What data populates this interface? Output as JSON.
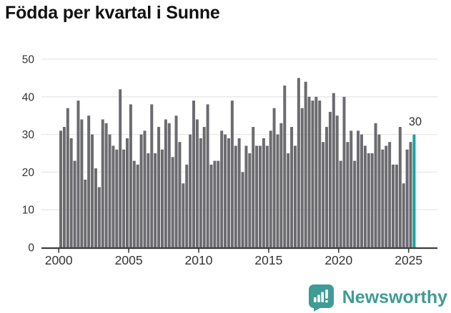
{
  "title": "Födda per kvartal i Sunne",
  "colors": {
    "bar": "#6B6B70",
    "highlight": "#16A39E",
    "grid": "#E7E7E7",
    "axis": "#3C3C3C",
    "tick_text": "#333333",
    "title_text": "#111111",
    "logo": "#3F9C95"
  },
  "y_axis": {
    "ticks": [
      0,
      10,
      20,
      30,
      40,
      50
    ],
    "max": 50
  },
  "x_axis": {
    "ticks": [
      "2000",
      "2005",
      "2010",
      "2015",
      "2020",
      "2025"
    ]
  },
  "highlight": {
    "label": "30"
  },
  "logo": {
    "text": "Newsworthy",
    "icon": "newsworthy-chart-bubble-icon"
  },
  "chart_data": {
    "type": "bar",
    "title": "Födda per kvartal i Sunne",
    "period": "quarterly",
    "x_start": "2000 Q1",
    "x_end": "2025 Q2",
    "ylim": [
      0,
      50
    ],
    "grid": true,
    "legend": false,
    "values": [
      31,
      32,
      37,
      29,
      23,
      39,
      34,
      18,
      35,
      30,
      21,
      16,
      34,
      33,
      30,
      27,
      26,
      42,
      26,
      29,
      38,
      23,
      22,
      30,
      31,
      25,
      38,
      25,
      32,
      26,
      34,
      33,
      24,
      35,
      28,
      17,
      22,
      30,
      39,
      34,
      29,
      32,
      38,
      22,
      23,
      23,
      31,
      30,
      29,
      39,
      27,
      29,
      20,
      27,
      25,
      32,
      27,
      27,
      29,
      27,
      31,
      37,
      30,
      33,
      43,
      25,
      32,
      27,
      45,
      37,
      44,
      40,
      39,
      40,
      39,
      28,
      32,
      36,
      41,
      35,
      23,
      40,
      28,
      31,
      23,
      31,
      30,
      27,
      25,
      25,
      33,
      30,
      26,
      27,
      28,
      22,
      22,
      32,
      17,
      26,
      28,
      30
    ],
    "highlight_index": 101,
    "highlight_value": 30
  }
}
